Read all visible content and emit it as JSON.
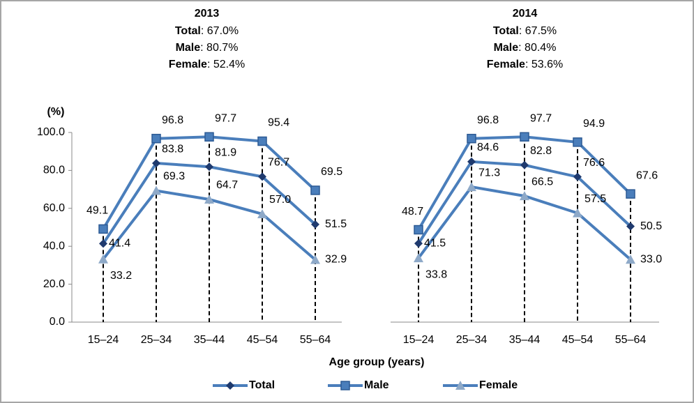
{
  "chart_data": [
    {
      "type": "line",
      "title": "2013",
      "summary": [
        {
          "label": "Total",
          "text": ": 67.0%"
        },
        {
          "label": "Male",
          "text": ": 80.7%"
        },
        {
          "label": "Female",
          "text": ": 52.4%"
        }
      ],
      "ylabel": "(%)",
      "xlabel": "Age group (years)",
      "categories": [
        "15–24",
        "25–34",
        "35–44",
        "45–54",
        "55–64"
      ],
      "ylim": [
        0,
        100
      ],
      "yticks": [
        {
          "value": 0,
          "label": "0.0"
        },
        {
          "value": 20,
          "label": "20.0"
        },
        {
          "value": 40,
          "label": "40.0"
        },
        {
          "value": 60,
          "label": "60.0"
        },
        {
          "value": 80,
          "label": "80.0"
        },
        {
          "value": 100,
          "label": "100.0"
        }
      ],
      "series": [
        {
          "name": "Total",
          "color": "#4a7ebb",
          "marker": "diamond",
          "marker_color": "#1f3a6e",
          "values": [
            41.4,
            83.8,
            81.9,
            76.7,
            51.5
          ],
          "value_labels": [
            "41.4",
            "83.8",
            "81.9",
            "76.7",
            "51.5"
          ]
        },
        {
          "name": "Male",
          "color": "#4a7ebb",
          "marker": "square",
          "marker_color": "#4a7ebb",
          "values": [
            49.1,
            96.8,
            97.7,
            95.4,
            69.5
          ],
          "value_labels": [
            "49.1",
            "96.8",
            "97.7",
            "95.4",
            "69.5"
          ]
        },
        {
          "name": "Female",
          "color": "#4a7ebb",
          "marker": "triangle",
          "marker_color": "#8ea9c8",
          "values": [
            33.2,
            69.3,
            64.7,
            57.0,
            32.9
          ],
          "value_labels": [
            "33.2",
            "69.3",
            "64.7",
            "57.0",
            "32.9"
          ]
        }
      ]
    },
    {
      "type": "line",
      "title": "2014",
      "summary": [
        {
          "label": "Total",
          "text": ": 67.5%"
        },
        {
          "label": "Male",
          "text": ": 80.4%"
        },
        {
          "label": "Female",
          "text": ": 53.6%"
        }
      ],
      "categories": [
        "15–24",
        "25–34",
        "35–44",
        "45–54",
        "55–64"
      ],
      "ylim": [
        0,
        100
      ],
      "series": [
        {
          "name": "Total",
          "color": "#4a7ebb",
          "marker": "diamond",
          "marker_color": "#1f3a6e",
          "values": [
            41.5,
            84.6,
            82.8,
            76.6,
            50.5
          ],
          "value_labels": [
            "41.5",
            "84.6",
            "82.8",
            "76.6",
            "50.5"
          ]
        },
        {
          "name": "Male",
          "color": "#4a7ebb",
          "marker": "square",
          "marker_color": "#4a7ebb",
          "values": [
            48.7,
            96.8,
            97.7,
            94.9,
            67.6
          ],
          "value_labels": [
            "48.7",
            "96.8",
            "97.7",
            "94.9",
            "67.6"
          ]
        },
        {
          "name": "Female",
          "color": "#4a7ebb",
          "marker": "triangle",
          "marker_color": "#8ea9c8",
          "values": [
            33.8,
            71.3,
            66.5,
            57.5,
            33.0
          ],
          "value_labels": [
            "33.8",
            "71.3",
            "66.5",
            "57.5",
            "33.0"
          ]
        }
      ]
    }
  ]
}
